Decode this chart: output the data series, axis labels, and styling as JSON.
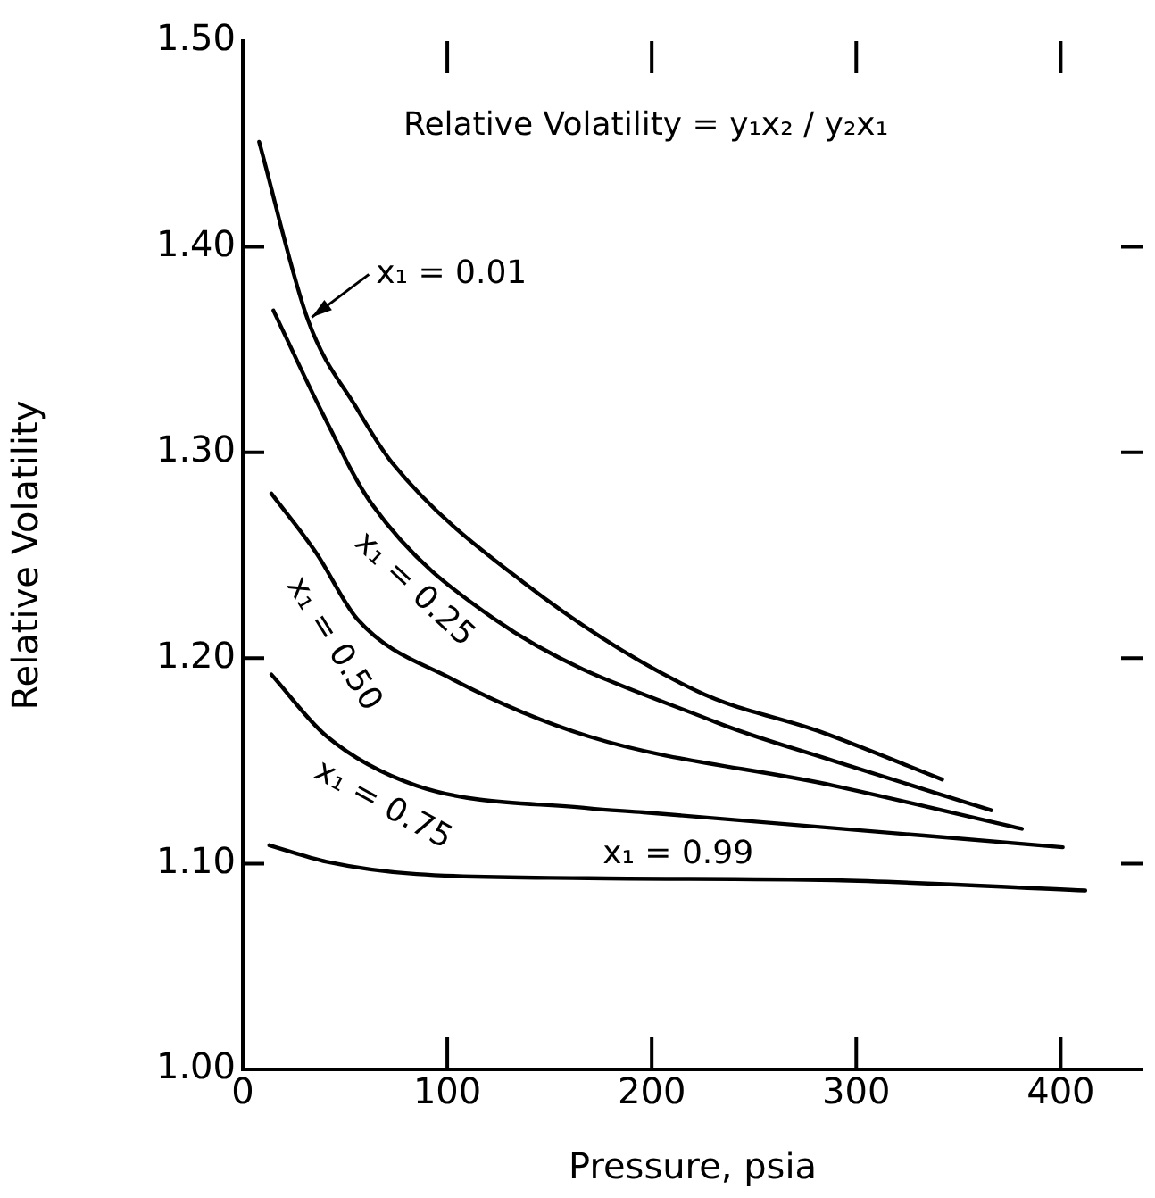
{
  "chart_data": {
    "type": "line",
    "xlabel": "Pressure, psia",
    "ylabel": "Relative Volatility",
    "annotations": [
      "Relative Volatility = y₁x₂ / y₂x₁"
    ],
    "xlim": [
      0,
      440
    ],
    "xticks": [
      0,
      100,
      200,
      300,
      400
    ],
    "ylim": [
      1.0,
      1.5
    ],
    "yticks": [
      {
        "value": 1.0,
        "label": "1.00"
      },
      {
        "value": 1.1,
        "label": "1.10"
      },
      {
        "value": 1.2,
        "label": "1.20"
      },
      {
        "value": 1.3,
        "label": "1.30"
      },
      {
        "value": 1.4,
        "label": "1.40"
      },
      {
        "value": 1.5,
        "label": "1.50"
      }
    ],
    "grid": false,
    "legend": false,
    "marker": "none",
    "line_style": "solid",
    "series": [
      {
        "name": "x₁ = 0.01",
        "color": "#000000",
        "x": [
          8,
          32,
          56,
          73,
          137,
          222,
          283,
          342
        ],
        "values": [
          1.451,
          1.364,
          1.321,
          1.295,
          1.237,
          1.184,
          1.164,
          1.141
        ]
      },
      {
        "name": "x₁ = 0.25",
        "color": "#000000",
        "x": [
          15,
          38,
          63,
          123,
          231,
          289,
          366
        ],
        "values": [
          1.369,
          1.321,
          1.275,
          1.219,
          1.169,
          1.15,
          1.126
        ]
      },
      {
        "name": "x₁ = 0.50",
        "color": "#000000",
        "x": [
          14,
          36,
          56,
          102,
          169,
          289,
          381
        ],
        "values": [
          1.28,
          1.251,
          1.219,
          1.19,
          1.162,
          1.138,
          1.117
        ]
      },
      {
        "name": "x₁ = 0.75",
        "color": "#000000",
        "x": [
          14,
          41,
          85,
          169,
          196,
          401
        ],
        "values": [
          1.192,
          1.162,
          1.138,
          1.127,
          1.125,
          1.108
        ]
      },
      {
        "name": "x₁ = 0.99",
        "color": "#000000",
        "x": [
          13,
          41,
          85,
          169,
          289,
          412
        ],
        "values": [
          1.109,
          1.101,
          1.095,
          1.093,
          1.092,
          1.087
        ]
      }
    ]
  }
}
